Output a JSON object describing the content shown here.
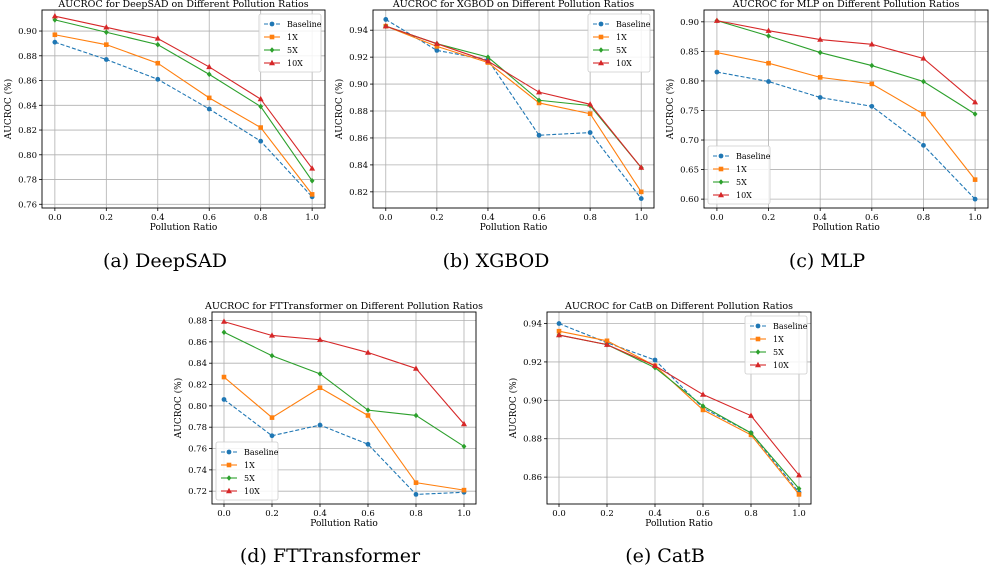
{
  "colors": {
    "Baseline": "#1f77b4",
    "1X": "#ff7f0e",
    "5X": "#2ca02c",
    "10X": "#d62728"
  },
  "chart_data": [
    {
      "type": "line",
      "title": "AUCROC for DeepSAD on Different Pollution Ratios",
      "caption": "(a) DeepSAD",
      "xlabel": "Pollution Ratio",
      "ylabel": "AUCROC (%)",
      "x": [
        0.0,
        0.2,
        0.4,
        0.6,
        0.8,
        1.0
      ],
      "xticks": [
        "0.0",
        "0.2",
        "0.4",
        "0.6",
        "0.8",
        "1.0"
      ],
      "ylim": [
        0.757,
        0.917
      ],
      "yticks": [
        "0.76",
        "0.78",
        "0.80",
        "0.82",
        "0.84",
        "0.86",
        "0.88",
        "0.90"
      ],
      "legend": "top-right",
      "grid": true,
      "series": [
        {
          "name": "Baseline",
          "values": [
            0.891,
            0.877,
            0.861,
            0.837,
            0.811,
            0.766
          ]
        },
        {
          "name": "1X",
          "values": [
            0.897,
            0.889,
            0.874,
            0.846,
            0.822,
            0.768
          ]
        },
        {
          "name": "5X",
          "values": [
            0.909,
            0.899,
            0.889,
            0.865,
            0.839,
            0.779
          ]
        },
        {
          "name": "10X",
          "values": [
            0.912,
            0.903,
            0.894,
            0.871,
            0.845,
            0.789
          ]
        }
      ]
    },
    {
      "type": "line",
      "title": "AUCROC for XGBOD on Different Pollution Ratios",
      "caption": "(b) XGBOD",
      "xlabel": "Pollution Ratio",
      "ylabel": "AUCROC (%)",
      "x": [
        0.0,
        0.2,
        0.4,
        0.6,
        0.8,
        1.0
      ],
      "xticks": [
        "0.0",
        "0.2",
        "0.4",
        "0.6",
        "0.8",
        "1.0"
      ],
      "ylim": [
        0.808,
        0.955
      ],
      "yticks": [
        "0.82",
        "0.84",
        "0.86",
        "0.88",
        "0.90",
        "0.92",
        "0.94"
      ],
      "legend": "top-right",
      "grid": true,
      "series": [
        {
          "name": "Baseline",
          "values": [
            0.948,
            0.925,
            0.918,
            0.862,
            0.864,
            0.815
          ]
        },
        {
          "name": "1X",
          "values": [
            0.943,
            0.928,
            0.916,
            0.886,
            0.878,
            0.82
          ]
        },
        {
          "name": "5X",
          "values": [
            0.943,
            0.93,
            0.92,
            0.888,
            0.884,
            0.838
          ]
        },
        {
          "name": "10X",
          "values": [
            0.943,
            0.93,
            0.917,
            0.894,
            0.885,
            0.838
          ]
        }
      ]
    },
    {
      "type": "line",
      "title": "AUCROC for MLP on Different Pollution Ratios",
      "caption": "(c) MLP",
      "xlabel": "Pollution Ratio",
      "ylabel": "AUCROC (%)",
      "x": [
        0.0,
        0.2,
        0.4,
        0.6,
        0.8,
        1.0
      ],
      "xticks": [
        "0.0",
        "0.2",
        "0.4",
        "0.6",
        "0.8",
        "1.0"
      ],
      "ylim": [
        0.585,
        0.92
      ],
      "yticks": [
        "0.60",
        "0.65",
        "0.70",
        "0.75",
        "0.80",
        "0.85",
        "0.90"
      ],
      "legend": "bottom-left",
      "grid": true,
      "series": [
        {
          "name": "Baseline",
          "values": [
            0.815,
            0.799,
            0.772,
            0.757,
            0.691,
            0.6
          ]
        },
        {
          "name": "1X",
          "values": [
            0.848,
            0.83,
            0.806,
            0.795,
            0.744,
            0.633
          ]
        },
        {
          "name": "5X",
          "values": [
            0.902,
            0.876,
            0.848,
            0.826,
            0.799,
            0.744
          ]
        },
        {
          "name": "10X",
          "values": [
            0.902,
            0.885,
            0.87,
            0.862,
            0.838,
            0.764
          ]
        }
      ]
    },
    {
      "type": "line",
      "title": "AUCROC for FTTransformer on Different Pollution Ratios",
      "caption": "(d) FTTransformer",
      "xlabel": "Pollution Ratio",
      "ylabel": "AUCROC (%)",
      "x": [
        0.0,
        0.2,
        0.4,
        0.6,
        0.8,
        1.0
      ],
      "xticks": [
        "0.0",
        "0.2",
        "0.4",
        "0.6",
        "0.8",
        "1.0"
      ],
      "ylim": [
        0.708,
        0.888
      ],
      "yticks": [
        "0.72",
        "0.74",
        "0.76",
        "0.78",
        "0.80",
        "0.82",
        "0.84",
        "0.86",
        "0.88"
      ],
      "legend": "bottom-left",
      "grid": true,
      "series": [
        {
          "name": "Baseline",
          "values": [
            0.806,
            0.772,
            0.782,
            0.764,
            0.717,
            0.719
          ]
        },
        {
          "name": "1X",
          "values": [
            0.827,
            0.789,
            0.817,
            0.791,
            0.728,
            0.721
          ]
        },
        {
          "name": "5X",
          "values": [
            0.869,
            0.847,
            0.83,
            0.796,
            0.791,
            0.762
          ]
        },
        {
          "name": "10X",
          "values": [
            0.879,
            0.866,
            0.862,
            0.85,
            0.835,
            0.783
          ]
        }
      ]
    },
    {
      "type": "line",
      "title": "AUCROC for CatB on Different Pollution Ratios",
      "caption": "(e) CatB",
      "xlabel": "Pollution Ratio",
      "ylabel": "AUCROC (%)",
      "x": [
        0.0,
        0.2,
        0.4,
        0.6,
        0.8,
        1.0
      ],
      "xticks": [
        "0.0",
        "0.2",
        "0.4",
        "0.6",
        "0.8",
        "1.0"
      ],
      "ylim": [
        0.846,
        0.946
      ],
      "yticks": [
        "0.86",
        "0.88",
        "0.90",
        "0.92",
        "0.94"
      ],
      "legend": "top-right",
      "grid": true,
      "series": [
        {
          "name": "Baseline",
          "values": [
            0.94,
            0.93,
            0.921,
            0.896,
            0.883,
            0.852
          ]
        },
        {
          "name": "1X",
          "values": [
            0.936,
            0.931,
            0.918,
            0.895,
            0.882,
            0.851
          ]
        },
        {
          "name": "5X",
          "values": [
            0.934,
            0.929,
            0.917,
            0.897,
            0.883,
            0.854
          ]
        },
        {
          "name": "10X",
          "values": [
            0.934,
            0.929,
            0.918,
            0.903,
            0.892,
            0.861
          ]
        }
      ]
    }
  ]
}
